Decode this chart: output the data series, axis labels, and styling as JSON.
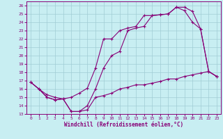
{
  "xlabel": "Windchill (Refroidissement éolien,°C)",
  "xlim": [
    -0.5,
    23.5
  ],
  "ylim": [
    13,
    26.5
  ],
  "xticks": [
    0,
    1,
    2,
    3,
    4,
    5,
    6,
    7,
    8,
    9,
    10,
    11,
    12,
    13,
    14,
    15,
    16,
    17,
    18,
    19,
    20,
    21,
    22,
    23
  ],
  "yticks": [
    13,
    14,
    15,
    16,
    17,
    18,
    19,
    20,
    21,
    22,
    23,
    24,
    25,
    26
  ],
  "background_color": "#c8eef2",
  "grid_color": "#a0ccd4",
  "line_color": "#880077",
  "line1_x": [
    0,
    1,
    2,
    3,
    4,
    5,
    6,
    7,
    8,
    9,
    10,
    11,
    12,
    13,
    14,
    15,
    16,
    17,
    18,
    19,
    20,
    21,
    22,
    23
  ],
  "line1_y": [
    16.8,
    16.0,
    15.0,
    14.7,
    14.8,
    13.3,
    13.3,
    14.0,
    16.0,
    18.5,
    20.0,
    20.5,
    23.0,
    23.3,
    23.5,
    24.8,
    24.9,
    25.0,
    25.8,
    25.8,
    25.3,
    23.2,
    18.1,
    17.5
  ],
  "line2_x": [
    0,
    1,
    2,
    3,
    4,
    5,
    6,
    7,
    8,
    9,
    10,
    11,
    12,
    13,
    14,
    15,
    16,
    17,
    18,
    19,
    20,
    21,
    22,
    23
  ],
  "line2_y": [
    16.8,
    16.0,
    15.3,
    15.0,
    14.8,
    15.0,
    15.5,
    16.1,
    18.5,
    22.0,
    22.0,
    23.0,
    23.3,
    23.5,
    24.8,
    24.8,
    24.9,
    25.0,
    25.8,
    25.4,
    24.0,
    23.2,
    18.1,
    17.5
  ],
  "line3_x": [
    0,
    1,
    2,
    3,
    4,
    5,
    6,
    7,
    8,
    9,
    10,
    11,
    12,
    13,
    14,
    15,
    16,
    17,
    18,
    19,
    20,
    21,
    22,
    23
  ],
  "line3_y": [
    16.8,
    16.0,
    15.0,
    14.7,
    14.8,
    13.3,
    13.3,
    13.5,
    15.0,
    15.2,
    15.5,
    16.0,
    16.2,
    16.5,
    16.5,
    16.7,
    16.9,
    17.2,
    17.2,
    17.5,
    17.7,
    17.9,
    18.1,
    17.5
  ]
}
